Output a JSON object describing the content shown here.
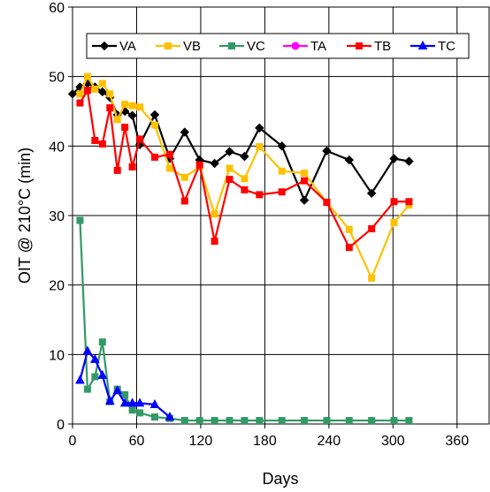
{
  "chart_data": {
    "type": "line",
    "xlabel": "Days",
    "ylabel": "OIT @ 210°C (min)",
    "xlim": [
      0,
      390
    ],
    "ylim": [
      0,
      60
    ],
    "xticks": [
      0,
      60,
      120,
      180,
      240,
      300,
      360
    ],
    "yticks": [
      0,
      10,
      20,
      30,
      40,
      50,
      60
    ],
    "grid": true,
    "legend_position": "top-right",
    "series": [
      {
        "name": "VA",
        "color": "#000000",
        "marker": "diamond",
        "points": [
          [
            0,
            47.5
          ],
          [
            7,
            48.5
          ],
          [
            14,
            49
          ],
          [
            21,
            48.5
          ],
          [
            28,
            47.8
          ],
          [
            35,
            47
          ],
          [
            42,
            44.5
          ],
          [
            49,
            45
          ],
          [
            56,
            44.4
          ],
          [
            63,
            40.2
          ],
          [
            77,
            44.5
          ],
          [
            91,
            38.2
          ],
          [
            105,
            42
          ],
          [
            119,
            38
          ],
          [
            133,
            37.5
          ],
          [
            147,
            39.2
          ],
          [
            161,
            38.5
          ],
          [
            175,
            42.6
          ],
          [
            196,
            40
          ],
          [
            217,
            32.2
          ],
          [
            238,
            39.3
          ],
          [
            259,
            38
          ],
          [
            280,
            33.2
          ],
          [
            301,
            38.2
          ],
          [
            315,
            37.8
          ]
        ]
      },
      {
        "name": "VB",
        "color": "#ffc000",
        "marker": "square",
        "points": [
          [
            7,
            47.5
          ],
          [
            14,
            50
          ],
          [
            21,
            48.2
          ],
          [
            28,
            49
          ],
          [
            35,
            47.5
          ],
          [
            42,
            43.8
          ],
          [
            49,
            46
          ],
          [
            56,
            45.8
          ],
          [
            63,
            45.6
          ],
          [
            77,
            43
          ],
          [
            91,
            36.8
          ],
          [
            105,
            35.5
          ],
          [
            119,
            37
          ],
          [
            133,
            30.2
          ],
          [
            147,
            36.8
          ],
          [
            161,
            35.3
          ],
          [
            175,
            39.9
          ],
          [
            196,
            36.4
          ],
          [
            217,
            36.1
          ],
          [
            238,
            31.9
          ],
          [
            259,
            28
          ],
          [
            280,
            21
          ],
          [
            301,
            29
          ],
          [
            315,
            31.5
          ]
        ]
      },
      {
        "name": "VC",
        "color": "#339966",
        "marker": "square",
        "points": [
          [
            7,
            29.3
          ],
          [
            14,
            5
          ],
          [
            21,
            6.8
          ],
          [
            28,
            11.8
          ],
          [
            35,
            3.2
          ],
          [
            42,
            5
          ],
          [
            49,
            4.2
          ],
          [
            56,
            2
          ],
          [
            63,
            1.6
          ],
          [
            77,
            1
          ],
          [
            91,
            0.8
          ],
          [
            105,
            0.5
          ],
          [
            119,
            0.5
          ],
          [
            133,
            0.5
          ],
          [
            147,
            0.5
          ],
          [
            161,
            0.5
          ],
          [
            175,
            0.5
          ],
          [
            196,
            0.5
          ],
          [
            217,
            0.5
          ],
          [
            238,
            0.5
          ],
          [
            259,
            0.5
          ],
          [
            280,
            0.5
          ],
          [
            301,
            0.5
          ],
          [
            315,
            0.5
          ]
        ]
      },
      {
        "name": "TA",
        "color": "#ff00ff",
        "marker": "circle",
        "points": []
      },
      {
        "name": "TB",
        "color": "#ff0000",
        "marker": "square",
        "points": [
          [
            7,
            46.2
          ],
          [
            14,
            48
          ],
          [
            21,
            40.8
          ],
          [
            28,
            40.3
          ],
          [
            35,
            45.5
          ],
          [
            42,
            36.5
          ],
          [
            49,
            42.7
          ],
          [
            56,
            37
          ],
          [
            63,
            41
          ],
          [
            77,
            38.4
          ],
          [
            91,
            38.8
          ],
          [
            105,
            32.1
          ],
          [
            119,
            37.3
          ],
          [
            133,
            26.3
          ],
          [
            147,
            35.2
          ],
          [
            161,
            33.7
          ],
          [
            175,
            33
          ],
          [
            196,
            33.4
          ],
          [
            217,
            35
          ],
          [
            238,
            31.9
          ],
          [
            259,
            25.4
          ],
          [
            280,
            28.1
          ],
          [
            301,
            32
          ],
          [
            315,
            32
          ]
        ]
      },
      {
        "name": "TC",
        "color": "#0000ff",
        "marker": "triangle",
        "points": [
          [
            7,
            6.3
          ],
          [
            14,
            10.5
          ],
          [
            21,
            9.3
          ],
          [
            28,
            7
          ],
          [
            35,
            3.3
          ],
          [
            42,
            4.8
          ],
          [
            49,
            3
          ],
          [
            56,
            3
          ],
          [
            63,
            3
          ],
          [
            77,
            2.8
          ],
          [
            91,
            1
          ]
        ]
      }
    ]
  }
}
